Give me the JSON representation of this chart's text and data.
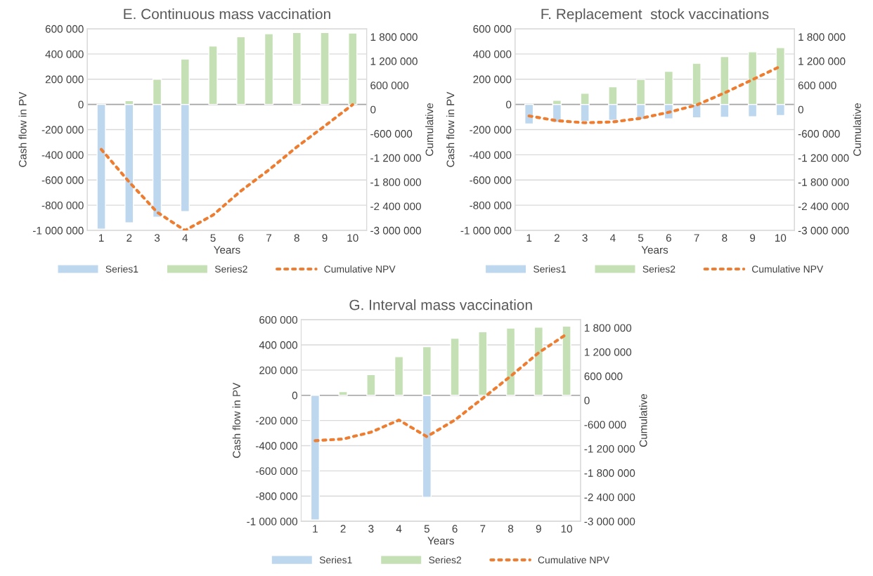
{
  "chart_data": [
    {
      "type": "bar",
      "title": "E. Continuous mass vaccination",
      "xlabel": "Years",
      "ylabel": "Cash flow in PV",
      "y2label": "Cumulative",
      "categories": [
        "1",
        "2",
        "3",
        "4",
        "5",
        "6",
        "7",
        "8",
        "9",
        "10"
      ],
      "stacked": true,
      "grid": "y",
      "legend": "bottom",
      "ylim": [
        -1000000,
        600000
      ],
      "yticks": [
        {
          "value": -1000000,
          "label": "-1 000 000"
        },
        {
          "value": -800000,
          "label": "-800 000"
        },
        {
          "value": -600000,
          "label": "-600 000"
        },
        {
          "value": -400000,
          "label": "-400 000"
        },
        {
          "value": -200000,
          "label": "-200 000"
        },
        0,
        {
          "value": 200000,
          "label": "200 000"
        },
        {
          "value": 400000,
          "label": "400 000"
        },
        {
          "value": 600000,
          "label": "600 000"
        }
      ],
      "y2lim": [
        -3000000,
        2000000
      ],
      "y2ticks": [
        {
          "value": -3000000,
          "label": "-3 000 000"
        },
        {
          "value": -2400000,
          "label": "-2 400 000"
        },
        {
          "value": -1800000,
          "label": "-1 800 000"
        },
        {
          "value": -1200000,
          "label": "-1 200 000"
        },
        {
          "value": -600000,
          "label": "-600 000"
        },
        0,
        {
          "value": 600000,
          "label": "600 000"
        },
        {
          "value": 1200000,
          "label": "1 200 000"
        },
        {
          "value": 1800000,
          "label": "1 800 000"
        }
      ],
      "series": [
        {
          "name": "Series1",
          "color": "#bdd7ee",
          "values": [
            -990000,
            -940000,
            -895000,
            -850000,
            null,
            null,
            null,
            null,
            null,
            null
          ]
        },
        {
          "name": "Series2",
          "color": "#c5e0b4",
          "values": [
            null,
            30000,
            200000,
            360000,
            463000,
            537000,
            561000,
            571000,
            571000,
            566000
          ]
        },
        {
          "name": "Cumulative NPV",
          "type": "line",
          "axis": "y2",
          "color": "#ed7d31",
          "line_style": "dotted",
          "marker": "none",
          "values": [
            -990000,
            -1800000,
            -2550000,
            -3000000,
            -2620000,
            -2020000,
            -1500000,
            -930000,
            -410000,
            120000
          ]
        }
      ]
    },
    {
      "type": "bar",
      "title": "F. Replacement  stock vaccinations",
      "xlabel": "Years",
      "ylabel": "Cash flow in PV",
      "y2label": "Cumulative",
      "categories": [
        "1",
        "2",
        "3",
        "4",
        "5",
        "6",
        "7",
        "8",
        "9",
        "10"
      ],
      "stacked": true,
      "grid": "y",
      "legend": "bottom",
      "ylim": [
        -1000000,
        600000
      ],
      "yticks": [
        {
          "value": -1000000,
          "label": "-1 000 000"
        },
        {
          "value": -800000,
          "label": "-800 000"
        },
        {
          "value": -600000,
          "label": "-600 000"
        },
        {
          "value": -400000,
          "label": "-400 000"
        },
        {
          "value": -200000,
          "label": "-200 000"
        },
        0,
        {
          "value": 200000,
          "label": "200 000"
        },
        {
          "value": 400000,
          "label": "400 000"
        },
        {
          "value": 600000,
          "label": "600 000"
        }
      ],
      "y2lim": [
        -3000000,
        2000000
      ],
      "y2ticks": [
        {
          "value": -3000000,
          "label": "-3 000 000"
        },
        {
          "value": -2400000,
          "label": "-2 400 000"
        },
        {
          "value": -1800000,
          "label": "-1 800 000"
        },
        {
          "value": -1200000,
          "label": "-1 200 000"
        },
        {
          "value": -600000,
          "label": "-600 000"
        },
        0,
        {
          "value": 600000,
          "label": "600 000"
        },
        {
          "value": 1200000,
          "label": "1 200 000"
        },
        {
          "value": 1800000,
          "label": "1 800 000"
        }
      ],
      "series": [
        {
          "name": "Series1",
          "color": "#bdd7ee",
          "values": [
            -155000,
            -143000,
            -136000,
            -126000,
            -119000,
            -114000,
            -107000,
            -102000,
            -98000,
            -88000
          ]
        },
        {
          "name": "Series2",
          "color": "#c5e0b4",
          "values": [
            null,
            33000,
            88000,
            140000,
            198000,
            262000,
            326000,
            379000,
            417000,
            450000
          ]
        },
        {
          "name": "Cumulative NPV",
          "type": "line",
          "axis": "y2",
          "color": "#ed7d31",
          "line_style": "dotted",
          "marker": "none",
          "values": [
            -160000,
            -280000,
            -330000,
            -310000,
            -220000,
            -70000,
            110000,
            410000,
            740000,
            1070000
          ]
        }
      ]
    },
    {
      "type": "bar",
      "title": "G. Interval mass vaccination",
      "xlabel": "Years",
      "ylabel": "Cash flow in PV",
      "y2label": "Cumulative",
      "categories": [
        "1",
        "2",
        "3",
        "4",
        "5",
        "6",
        "7",
        "8",
        "9",
        "10"
      ],
      "stacked": true,
      "grid": "y",
      "legend": "bottom",
      "ylim": [
        -1000000,
        600000
      ],
      "yticks": [
        {
          "value": -1000000,
          "label": "-1 000 000"
        },
        {
          "value": -800000,
          "label": "-800 000"
        },
        {
          "value": -600000,
          "label": "-600 000"
        },
        {
          "value": -400000,
          "label": "-400 000"
        },
        {
          "value": -200000,
          "label": "-200 000"
        },
        0,
        {
          "value": 200000,
          "label": "200 000"
        },
        {
          "value": 400000,
          "label": "400 000"
        },
        {
          "value": 600000,
          "label": "600 000"
        }
      ],
      "y2lim": [
        -3000000,
        2000000
      ],
      "y2ticks": [
        {
          "value": -3000000,
          "label": "-3 000 000"
        },
        {
          "value": -2400000,
          "label": "-2 400 000"
        },
        {
          "value": -1800000,
          "label": "-1 800 000"
        },
        {
          "value": -1200000,
          "label": "-1 200 000"
        },
        {
          "value": -600000,
          "label": "-600 000"
        },
        0,
        {
          "value": 600000,
          "label": "600 000"
        },
        {
          "value": 1200000,
          "label": "1 200 000"
        },
        {
          "value": 1800000,
          "label": "1 800 000"
        }
      ],
      "series": [
        {
          "name": "Series1",
          "color": "#bdd7ee",
          "values": [
            -990000,
            null,
            null,
            null,
            -810000,
            null,
            null,
            null,
            null,
            null
          ]
        },
        {
          "name": "Series2",
          "color": "#c5e0b4",
          "values": [
            null,
            29000,
            164000,
            306000,
            386000,
            453000,
            504000,
            533000,
            540000,
            549000
          ]
        },
        {
          "name": "Cumulative NPV",
          "type": "line",
          "axis": "y2",
          "color": "#ed7d31",
          "line_style": "dotted",
          "marker": "none",
          "values": [
            -1000000,
            -960000,
            -790000,
            -490000,
            -900000,
            -490000,
            50000,
            600000,
            1180000,
            1640000
          ]
        }
      ]
    }
  ]
}
